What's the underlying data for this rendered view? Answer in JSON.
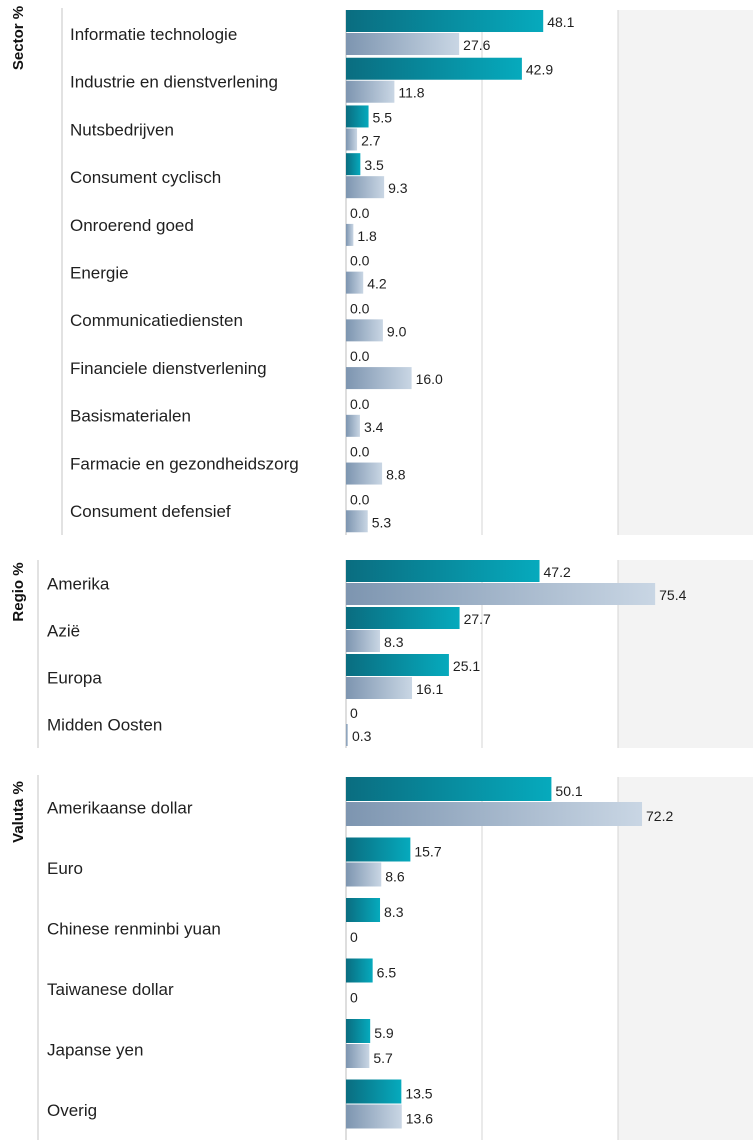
{
  "chart_data": [
    {
      "type": "bar",
      "orientation": "horizontal",
      "title": "Sector %",
      "categories": [
        "Informatie technologie",
        "Industrie en dienstverlening",
        "Nutsbedrijven",
        "Consument cyclisch",
        "Onroerend goed",
        "Energie",
        "Communicatiediensten",
        "Financiele dienstverlening",
        "Basismaterialen",
        "Farmacie en gezondheidszorg",
        "Consument defensief"
      ],
      "series": [
        {
          "values": [
            48.1,
            42.9,
            5.5,
            3.5,
            0.0,
            0.0,
            0.0,
            0.0,
            0.0,
            0.0,
            0.0
          ],
          "labels": [
            "48.1",
            "42.9",
            "5.5",
            "3.5",
            "0.0",
            "0.0",
            "0.0",
            "0.0",
            "0.0",
            "0.0",
            "0.0"
          ]
        },
        {
          "values": [
            27.6,
            11.8,
            2.7,
            9.3,
            1.8,
            4.2,
            9.0,
            16.0,
            3.4,
            8.8,
            5.3
          ],
          "labels": [
            "27.6",
            "11.8",
            "2.7",
            "9.3",
            "1.8",
            "4.2",
            "9.0",
            "16.0",
            "3.4",
            "8.8",
            "5.3"
          ]
        }
      ],
      "xlim": [
        0,
        100
      ],
      "grid": true
    },
    {
      "type": "bar",
      "orientation": "horizontal",
      "title": "Regio %",
      "categories": [
        "Amerika",
        "Azië",
        "Europa",
        "Midden Oosten"
      ],
      "series": [
        {
          "values": [
            47.2,
            27.7,
            25.1,
            0
          ],
          "labels": [
            "47.2",
            "27.7",
            "25.1",
            "0"
          ]
        },
        {
          "values": [
            75.4,
            8.3,
            16.1,
            0.3
          ],
          "labels": [
            "75.4",
            "8.3",
            "16.1",
            "0.3"
          ]
        }
      ],
      "xlim": [
        0,
        100
      ],
      "grid": true
    },
    {
      "type": "bar",
      "orientation": "horizontal",
      "title": "Valuta %",
      "categories": [
        "Amerikaanse dollar",
        "Euro",
        "Chinese renminbi yuan",
        "Taiwanese dollar",
        "Japanse yen",
        "Overig"
      ],
      "series": [
        {
          "values": [
            50.1,
            15.7,
            8.3,
            6.5,
            5.9,
            13.5
          ],
          "labels": [
            "50.1",
            "15.7",
            "8.3",
            "6.5",
            "5.9",
            "13.5"
          ]
        },
        {
          "values": [
            72.2,
            8.6,
            0,
            0,
            5.7,
            13.6
          ],
          "labels": [
            "72.2",
            "8.6",
            "0",
            "0",
            "5.7",
            "13.6"
          ]
        }
      ],
      "xlim": [
        0,
        100
      ],
      "grid": true
    }
  ],
  "colors": {
    "series1_start": "#0a6d80",
    "series1_end": "#06aabd",
    "series2_start": "#7d95b0",
    "series2_end": "#c9d6e4",
    "grid": "#d4d4d4",
    "plot_background": "#f3f3f3"
  }
}
